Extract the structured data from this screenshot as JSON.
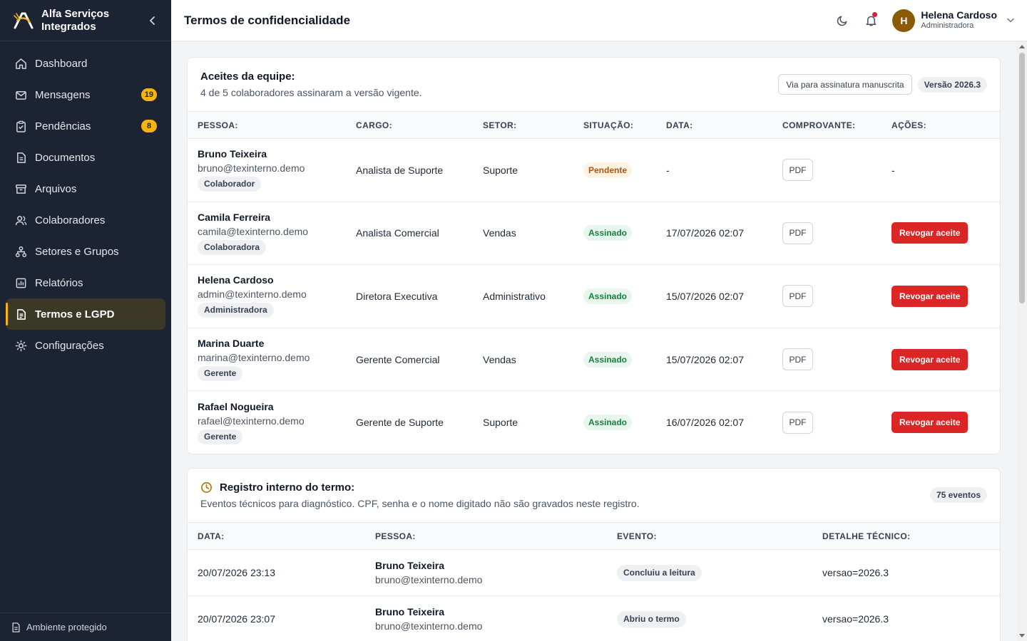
{
  "sidebar": {
    "brand_line1": "Alfa Serviços",
    "brand_line2": "Integrados",
    "items": [
      {
        "label": "Dashboard"
      },
      {
        "label": "Mensagens",
        "badge": "19"
      },
      {
        "label": "Pendências",
        "badge": "8"
      },
      {
        "label": "Documentos"
      },
      {
        "label": "Arquivos"
      },
      {
        "label": "Colaboradores"
      },
      {
        "label": "Setores e Grupos"
      },
      {
        "label": "Relatórios"
      },
      {
        "label": "Termos e LGPD",
        "active": true
      },
      {
        "label": "Configurações"
      }
    ],
    "footer": "Ambiente protegido"
  },
  "header": {
    "title": "Termos de confidencialidade",
    "user": {
      "initial": "H",
      "name": "Helena Cardoso",
      "role": "Administradora"
    }
  },
  "acceptances": {
    "title": "Aceites da equipe:",
    "subtitle": "4 de 5 colaboradores assinaram a versão vigente.",
    "manual_button": "Via para assinatura manuscrita",
    "version": "Versão 2026.3",
    "columns": [
      "PESSOA:",
      "CARGO:",
      "SETOR:",
      "SITUAÇÃO:",
      "DATA:",
      "COMPROVANTE:",
      "AÇÕES:"
    ],
    "rows": [
      {
        "name": "Bruno Teixeira",
        "email": "bruno@texinterno.demo",
        "role": "Colaborador",
        "position": "Analista de Suporte",
        "sector": "Suporte",
        "status": "Pendente",
        "date": "-",
        "receipt": "PDF",
        "action": "-"
      },
      {
        "name": "Camila Ferreira",
        "email": "camila@texinterno.demo",
        "role": "Colaboradora",
        "position": "Analista Comercial",
        "sector": "Vendas",
        "status": "Assinado",
        "date": "17/07/2026 02:07",
        "receipt": "PDF",
        "action": "Revogar aceite"
      },
      {
        "name": "Helena Cardoso",
        "email": "admin@texinterno.demo",
        "role": "Administradora",
        "position": "Diretora Executiva",
        "sector": "Administrativo",
        "status": "Assinado",
        "date": "15/07/2026 02:07",
        "receipt": "PDF",
        "action": "Revogar aceite"
      },
      {
        "name": "Marina Duarte",
        "email": "marina@texinterno.demo",
        "role": "Gerente",
        "position": "Gerente Comercial",
        "sector": "Vendas",
        "status": "Assinado",
        "date": "15/07/2026 02:07",
        "receipt": "PDF",
        "action": "Revogar aceite"
      },
      {
        "name": "Rafael Nogueira",
        "email": "rafael@texinterno.demo",
        "role": "Gerente",
        "position": "Gerente de Suporte",
        "sector": "Suporte",
        "status": "Assinado",
        "date": "16/07/2026 02:07",
        "receipt": "PDF",
        "action": "Revogar aceite"
      }
    ]
  },
  "log": {
    "title": "Registro interno do termo:",
    "subtitle": "Eventos técnicos para diagnóstico. CPF, senha e o nome digitado não são gravados neste registro.",
    "count": "75 eventos",
    "columns": [
      "DATA:",
      "PESSOA:",
      "EVENTO:",
      "DETALHE TÉCNICO:"
    ],
    "rows": [
      {
        "date": "20/07/2026 23:13",
        "name": "Bruno Teixeira",
        "email": "bruno@texinterno.demo",
        "event": "Concluiu a leitura",
        "detail": "versao=2026.3"
      },
      {
        "date": "20/07/2026 23:07",
        "name": "Bruno Teixeira",
        "email": "bruno@texinterno.demo",
        "event": "Abriu o termo",
        "detail": "versao=2026.3"
      }
    ]
  },
  "colors": {
    "accent": "#f6b40e",
    "sidebar_bg": "#1c2333",
    "danger": "#dc2626",
    "success": "#15803d",
    "warning": "#b45309"
  }
}
